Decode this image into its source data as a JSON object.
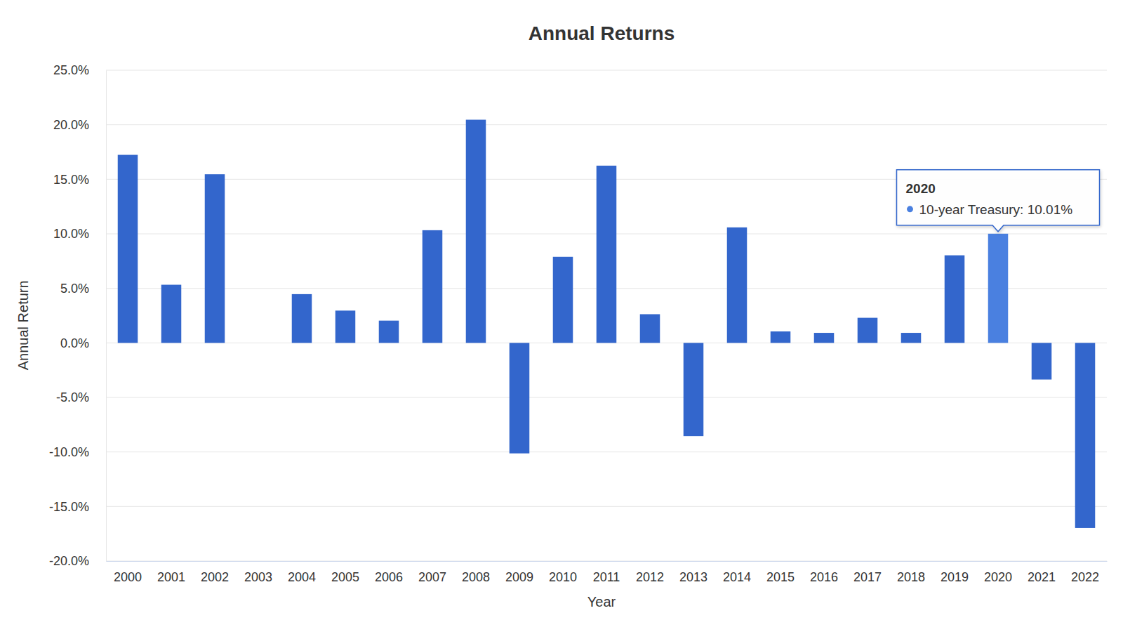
{
  "chart_data": {
    "type": "bar",
    "title": "Annual Returns",
    "x_label": "Year",
    "y_label": "Annual Return",
    "categories": [
      "2000",
      "2001",
      "2002",
      "2003",
      "2004",
      "2005",
      "2006",
      "2007",
      "2008",
      "2009",
      "2010",
      "2011",
      "2012",
      "2013",
      "2014",
      "2015",
      "2016",
      "2017",
      "2018",
      "2019",
      "2020",
      "2021",
      "2022"
    ],
    "values": [
      17.24,
      5.33,
      15.46,
      0,
      4.47,
      2.96,
      2.04,
      10.33,
      20.46,
      -10.13,
      7.89,
      16.25,
      2.63,
      -8.55,
      10.59,
      1.05,
      0.92,
      2.3,
      0.92,
      8.03,
      10.01,
      -3.36,
      -16.97
    ],
    "colors": [
      "#3366cc",
      "#3366cc",
      "#3366cc",
      "#3366cc",
      "#3366cc",
      "#3366cc",
      "#3366cc",
      "#3366cc",
      "#3366cc",
      "#3366cc",
      "#3366cc",
      "#3366cc",
      "#3366cc",
      "#3366cc",
      "#3366cc",
      "#3366cc",
      "#3366cc",
      "#3366cc",
      "#3366cc",
      "#3366cc",
      "#4a80e0",
      "#3366cc",
      "#3366cc"
    ],
    "ylim": [
      -20,
      25
    ],
    "yticks": [
      {
        "value": -20,
        "label": "-20.0%"
      },
      {
        "value": -15,
        "label": "-15.0%"
      },
      {
        "value": -10,
        "label": "-10.0%"
      },
      {
        "value": -5,
        "label": "-5.0%"
      },
      {
        "value": 0,
        "label": "0.0%"
      },
      {
        "value": 5,
        "label": "5.0%"
      },
      {
        "value": 10,
        "label": "10.0%"
      },
      {
        "value": 15,
        "label": "15.0%"
      },
      {
        "value": 20,
        "label": "20.0%"
      },
      {
        "value": 25,
        "label": "25.0%"
      }
    ],
    "grid": true,
    "annotations": [
      {
        "category": "2020",
        "text": "10-year Treasury: 10.01%"
      }
    ]
  }
}
